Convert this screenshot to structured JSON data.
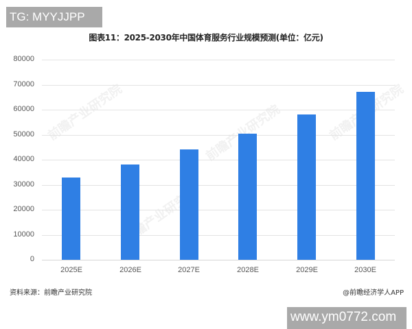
{
  "overlay": {
    "tg_badge": "TG: MYYJJPP",
    "url_badge": "www.ym0772.com"
  },
  "footer": {
    "source": "资料来源：前瞻产业研究院",
    "credit": "@前瞻经济学人APP"
  },
  "watermark": "前瞻产业研究院",
  "chart_data": {
    "type": "bar",
    "title": "图表11：2025-2030年中国体育服务行业规模预测(单位：亿元)",
    "xlabel": "",
    "ylabel": "",
    "categories": [
      "2025E",
      "2026E",
      "2027E",
      "2028E",
      "2029E",
      "2030E"
    ],
    "values": [
      33000,
      38000,
      44000,
      50500,
      58000,
      67000
    ],
    "yticks": [
      "0",
      "10000",
      "20000",
      "30000",
      "40000",
      "50000",
      "60000",
      "70000",
      "80000"
    ],
    "ylim": [
      0,
      80000
    ],
    "grid": true,
    "legend": "none",
    "bar_color": "#2f7fe4"
  }
}
